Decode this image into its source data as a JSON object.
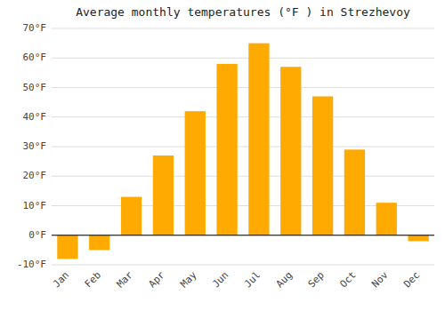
{
  "chart_data": {
    "type": "bar",
    "title": "Average monthly temperatures (°F ) in Strezhevoy",
    "categories": [
      "Jan",
      "Feb",
      "Mar",
      "Apr",
      "May",
      "Jun",
      "Jul",
      "Aug",
      "Sep",
      "Oct",
      "Nov",
      "Dec"
    ],
    "values": [
      -8,
      -5,
      13,
      27,
      42,
      58,
      65,
      57,
      47,
      29,
      11,
      -2
    ],
    "color": "#FFAA00",
    "ylim": [
      -10,
      70
    ],
    "yticks": [
      {
        "value": -10,
        "label": "-10°F"
      },
      {
        "value": 0,
        "label": "0°F"
      },
      {
        "value": 10,
        "label": "10°F"
      },
      {
        "value": 20,
        "label": "20°F"
      },
      {
        "value": 30,
        "label": "30°F"
      },
      {
        "value": 40,
        "label": "40°F"
      },
      {
        "value": 50,
        "label": "50°F"
      },
      {
        "value": 60,
        "label": "60°F"
      },
      {
        "value": 70,
        "label": "70°F"
      }
    ],
    "grid": true
  }
}
